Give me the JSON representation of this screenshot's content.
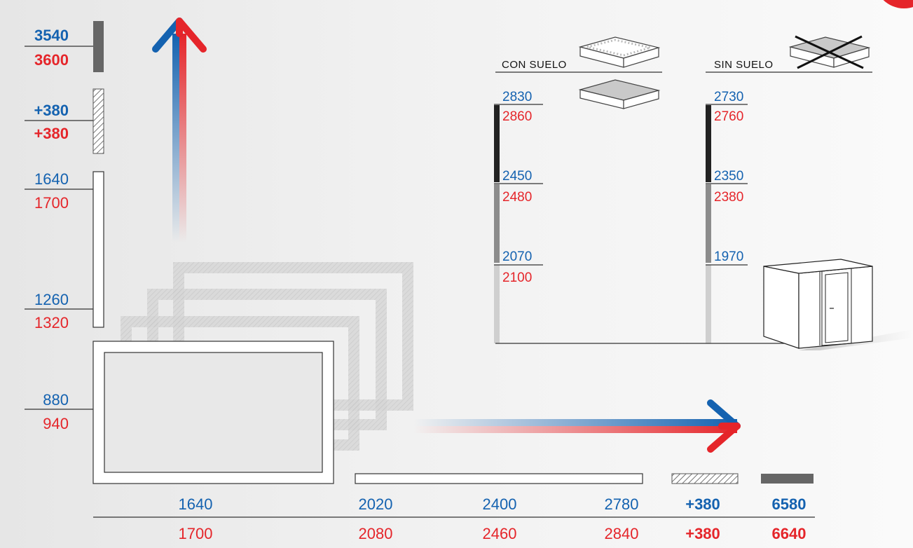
{
  "left_axis": {
    "total_blue": "3540",
    "total_red": "3600",
    "add_blue": "+380",
    "add_red": "+380",
    "h2_blue": "1640",
    "h2_red": "1700",
    "h1_blue": "1260",
    "h1_red": "1320",
    "h0_blue": "880",
    "h0_red": "940"
  },
  "bottom_axis": {
    "w0_blue": "1640",
    "w0_red": "1700",
    "w1_blue": "2020",
    "w1_red": "2080",
    "w2_blue": "2400",
    "w2_red": "2460",
    "w3_blue": "2780",
    "w3_red": "2840",
    "add_blue": "+380",
    "add_red": "+380",
    "total_blue": "6580",
    "total_red": "6640"
  },
  "con_suelo": {
    "label": "CON SUELO",
    "v0_blue": "2830",
    "v0_red": "2860",
    "v1_blue": "2450",
    "v1_red": "2480",
    "v2_blue": "2070",
    "v2_red": "2100"
  },
  "sin_suelo": {
    "label": "SIN SUELO",
    "v0_blue": "2730",
    "v0_red": "2760",
    "v1_blue": "2350",
    "v1_red": "2380",
    "v2_blue": "1970"
  },
  "colors": {
    "blue": "#1462b0",
    "red": "#e5252a",
    "dark": "#555555"
  }
}
